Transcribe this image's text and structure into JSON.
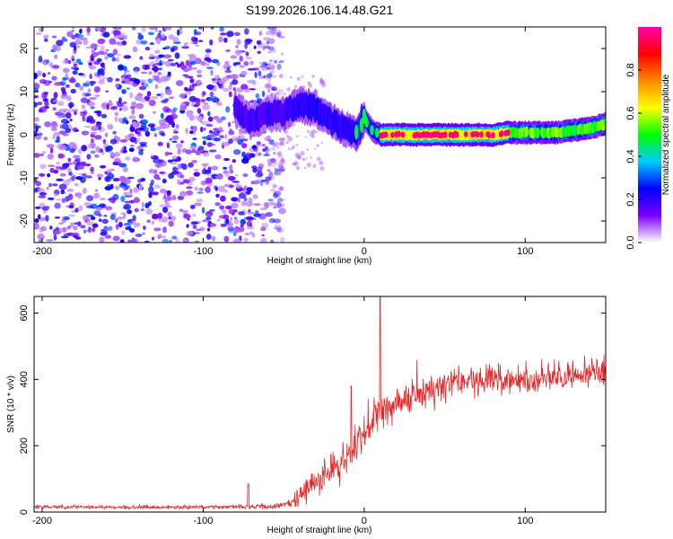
{
  "title": "S199.2026.106.14.48.G21",
  "chart_data": [
    {
      "type": "heatmap",
      "name": "spectrogram",
      "xlabel": "Height of straight line (km)",
      "ylabel": "Frequency (Hz)",
      "xlim": [
        -205,
        150
      ],
      "ylim": [
        -25,
        25
      ],
      "xticks": [
        -200,
        -100,
        0,
        100
      ],
      "yticks": [
        -20,
        -10,
        0,
        10,
        20
      ],
      "xtick_labels": [
        "-200",
        "-100",
        "0",
        "100"
      ],
      "ytick_labels": [
        "-20",
        "-10",
        "0",
        "10",
        "20"
      ],
      "colorbar": {
        "label": "Normalized spectral amplitude",
        "range": [
          0,
          1
        ],
        "ticks": [
          0,
          0.2,
          0.4,
          0.6,
          0.8
        ],
        "tick_labels": [
          "0.0",
          "0.2",
          "0.4",
          "0.6",
          "0.8"
        ],
        "colors": [
          "#ffffff",
          "#7a00ff",
          "#0000ff",
          "#00ccff",
          "#00ff00",
          "#ffff00",
          "#ff8800",
          "#ff0000",
          "#ff00aa"
        ]
      },
      "noise_region": {
        "x_from": -205,
        "x_to": -55
      },
      "ridge": {
        "description_points_x": [
          -80,
          -70,
          -60,
          -50,
          -40,
          -30,
          -20,
          -10,
          -5,
          0,
          5,
          10,
          20,
          40,
          60,
          80,
          90,
          100,
          110,
          120,
          130,
          140,
          150
        ],
        "description_points_y": [
          6,
          3,
          5,
          5,
          7,
          6,
          3,
          1,
          0,
          4,
          1,
          0,
          0,
          0,
          0,
          0,
          0.5,
          0.5,
          0.5,
          0.5,
          1,
          1.5,
          2.5
        ],
        "peak_region_x": [
          10,
          90
        ],
        "peak_amplitude": 1.0
      }
    },
    {
      "type": "line",
      "name": "snr",
      "xlabel": "Height of straight line (km)",
      "ylabel": "SNR (10 * v/v)",
      "xlim": [
        -205,
        150
      ],
      "ylim": [
        0,
        650
      ],
      "xticks": [
        -200,
        -100,
        0,
        100
      ],
      "yticks": [
        0,
        200,
        400,
        600
      ],
      "xtick_labels": [
        "-200",
        "-100",
        "0",
        "100"
      ],
      "ytick_labels": [
        "0",
        "200",
        "400",
        "600"
      ],
      "color": "#e8282a",
      "envelope": {
        "x": [
          -205,
          -100,
          -70,
          -55,
          -45,
          -38,
          -30,
          -20,
          -10,
          0,
          8,
          12,
          20,
          35,
          60,
          100,
          150
        ],
        "mean": [
          15,
          15,
          17,
          18,
          25,
          60,
          90,
          120,
          170,
          230,
          300,
          300,
          330,
          360,
          390,
          400,
          420
        ],
        "noise": [
          6,
          6,
          8,
          10,
          15,
          45,
          55,
          60,
          60,
          60,
          60,
          60,
          55,
          55,
          50,
          50,
          55
        ]
      },
      "spikes": [
        {
          "x": 10,
          "y": 650
        },
        {
          "x": -8,
          "y": 380
        },
        {
          "x": -72,
          "y": 85
        }
      ]
    }
  ]
}
